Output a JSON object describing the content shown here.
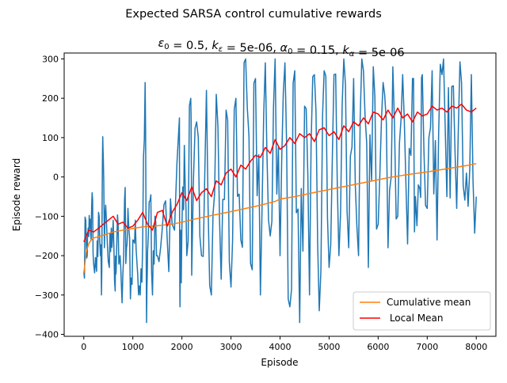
{
  "chart_data": {
    "type": "line",
    "suptitle": "Expected SARSA control cumulative rewards",
    "title_parts": [
      {
        "t": "ε",
        "style": "italic"
      },
      {
        "t": "0",
        "style": "sub"
      },
      {
        "t": " = 0.5, "
      },
      {
        "t": "k",
        "style": "italic"
      },
      {
        "t": "ε",
        "style": "italic-sub"
      },
      {
        "t": " = 5e-06, "
      },
      {
        "t": "α",
        "style": "italic"
      },
      {
        "t": "0",
        "style": "sub"
      },
      {
        "t": " = 0.15, "
      },
      {
        "t": "k",
        "style": "italic"
      },
      {
        "t": "α",
        "style": "italic-sub"
      },
      {
        "t": " = 5e-06"
      }
    ],
    "xlabel": "Episode",
    "ylabel": "Episode reward",
    "xlim": [
      -400,
      8400
    ],
    "ylim": [
      -405,
      315
    ],
    "xticks": [
      0,
      1000,
      2000,
      3000,
      4000,
      5000,
      6000,
      7000,
      8000
    ],
    "yticks": [
      -400,
      -300,
      -200,
      -100,
      0,
      100,
      200,
      300
    ],
    "grid": false,
    "legend_position": "lower-right",
    "series": [
      {
        "name": "",
        "color": "#1f77b4",
        "kind": "noisy-episode-rewards",
        "spike_points": [
          [
            0,
            -240
          ],
          [
            40,
            -110
          ],
          [
            70,
            -200
          ],
          [
            90,
            -130
          ],
          [
            120,
            -130
          ],
          [
            150,
            -160
          ],
          [
            170,
            -40
          ],
          [
            200,
            -220
          ],
          [
            260,
            -240
          ],
          [
            300,
            -90
          ],
          [
            340,
            -200
          ],
          [
            360,
            -300
          ],
          [
            380,
            40
          ],
          [
            400,
            40
          ],
          [
            420,
            -180
          ],
          [
            460,
            -110
          ],
          [
            520,
            -230
          ],
          [
            560,
            -130
          ],
          [
            600,
            -110
          ],
          [
            640,
            -290
          ],
          [
            660,
            -240
          ],
          [
            700,
            -120
          ],
          [
            740,
            -200
          ],
          [
            780,
            -320
          ],
          [
            830,
            -60
          ],
          [
            870,
            -180
          ],
          [
            900,
            -80
          ],
          [
            950,
            -310
          ],
          [
            1000,
            -160
          ],
          [
            1050,
            -110
          ],
          [
            1100,
            -250
          ],
          [
            1150,
            -300
          ],
          [
            1200,
            -170
          ],
          [
            1250,
            240
          ],
          [
            1280,
            -370
          ],
          [
            1300,
            -190
          ],
          [
            1350,
            -60
          ],
          [
            1400,
            -300
          ],
          [
            1450,
            -100
          ],
          [
            1500,
            -200
          ],
          [
            1600,
            -130
          ],
          [
            1700,
            -160
          ],
          [
            1800,
            -120
          ],
          [
            1950,
            150
          ],
          [
            1960,
            -330
          ],
          [
            2000,
            -130
          ],
          [
            2050,
            80
          ],
          [
            2100,
            -200
          ],
          [
            2180,
            200
          ],
          [
            2200,
            -250
          ],
          [
            2300,
            140
          ],
          [
            2400,
            -200
          ],
          [
            2500,
            220
          ],
          [
            2600,
            -300
          ],
          [
            2700,
            210
          ],
          [
            2800,
            -260
          ],
          [
            2900,
            170
          ],
          [
            3000,
            -280
          ],
          [
            3100,
            200
          ],
          [
            3200,
            -160
          ],
          [
            3300,
            300
          ],
          [
            3400,
            -220
          ],
          [
            3500,
            250
          ],
          [
            3600,
            -300
          ],
          [
            3700,
            290
          ],
          [
            3800,
            -150
          ],
          [
            3900,
            300
          ],
          [
            4000,
            -200
          ],
          [
            4100,
            290
          ],
          [
            4200,
            -330
          ],
          [
            4300,
            270
          ],
          [
            4400,
            -370
          ],
          [
            4500,
            180
          ],
          [
            4600,
            -300
          ],
          [
            4700,
            260
          ],
          [
            4800,
            -340
          ],
          [
            4900,
            270
          ],
          [
            5000,
            -230
          ],
          [
            5100,
            260
          ],
          [
            5200,
            -200
          ],
          [
            5300,
            300
          ],
          [
            5400,
            -180
          ],
          [
            5500,
            250
          ],
          [
            5600,
            -200
          ],
          [
            5700,
            270
          ],
          [
            5800,
            -230
          ],
          [
            5900,
            280
          ],
          [
            6000,
            -120
          ],
          [
            6100,
            240
          ],
          [
            6200,
            -180
          ],
          [
            6300,
            280
          ],
          [
            6400,
            -100
          ],
          [
            6500,
            260
          ],
          [
            6600,
            -170
          ],
          [
            6700,
            250
          ],
          [
            6760,
            -50
          ],
          [
            6850,
            -30
          ],
          [
            6900,
            260
          ],
          [
            7000,
            -80
          ],
          [
            7100,
            270
          ],
          [
            7200,
            -160
          ],
          [
            7300,
            260
          ],
          [
            7400,
            -50
          ],
          [
            7500,
            230
          ],
          [
            7600,
            -80
          ],
          [
            7700,
            240
          ],
          [
            7800,
            10
          ],
          [
            7900,
            260
          ],
          [
            8000,
            -50
          ]
        ]
      },
      {
        "name": "Cumulative mean",
        "color": "#ff7f0e",
        "x": [
          0,
          50,
          100,
          150,
          200,
          300,
          400,
          500,
          600,
          800,
          1000,
          1200,
          1500,
          1800,
          2000,
          2300,
          2600,
          3000,
          3300,
          3600,
          3900,
          4000,
          4300,
          4600,
          5000,
          5400,
          5800,
          6200,
          6600,
          7000,
          7400,
          7800,
          8000
        ],
        "y": [
          -245,
          -190,
          -170,
          -160,
          -155,
          -152,
          -148,
          -144,
          -140,
          -135,
          -131,
          -127,
          -124,
          -120,
          -115,
          -106,
          -98,
          -88,
          -80,
          -72,
          -62,
          -56,
          -50,
          -42,
          -32,
          -22,
          -12,
          -2,
          6,
          13,
          21,
          29,
          34
        ]
      },
      {
        "name": " Local Mean",
        "color": "#ff0000",
        "x": [
          0,
          100,
          200,
          300,
          400,
          500,
          600,
          700,
          800,
          900,
          1000,
          1100,
          1200,
          1300,
          1400,
          1500,
          1600,
          1700,
          1800,
          1900,
          2000,
          2100,
          2200,
          2300,
          2400,
          2500,
          2600,
          2700,
          2800,
          2900,
          3000,
          3100,
          3200,
          3300,
          3400,
          3500,
          3600,
          3700,
          3800,
          3900,
          4000,
          4100,
          4200,
          4300,
          4400,
          4500,
          4600,
          4700,
          4800,
          4900,
          5000,
          5100,
          5200,
          5300,
          5400,
          5500,
          5600,
          5700,
          5800,
          5900,
          6000,
          6100,
          6200,
          6300,
          6400,
          6500,
          6600,
          6700,
          6800,
          6900,
          7000,
          7100,
          7200,
          7300,
          7400,
          7500,
          7600,
          7700,
          7800,
          7900,
          8000
        ],
        "y": [
          -165,
          -135,
          -140,
          -130,
          -120,
          -110,
          -100,
          -120,
          -115,
          -130,
          -125,
          -110,
          -90,
          -120,
          -135,
          -90,
          -85,
          -125,
          -90,
          -70,
          -40,
          -60,
          -25,
          -60,
          -40,
          -30,
          -50,
          -10,
          -20,
          10,
          20,
          0,
          30,
          20,
          40,
          55,
          50,
          75,
          60,
          95,
          70,
          80,
          100,
          85,
          110,
          100,
          110,
          90,
          120,
          125,
          105,
          115,
          95,
          130,
          115,
          140,
          130,
          150,
          135,
          165,
          160,
          145,
          170,
          150,
          175,
          150,
          160,
          140,
          165,
          155,
          160,
          180,
          170,
          175,
          165,
          180,
          175,
          185,
          170,
          165,
          175
        ]
      }
    ]
  }
}
